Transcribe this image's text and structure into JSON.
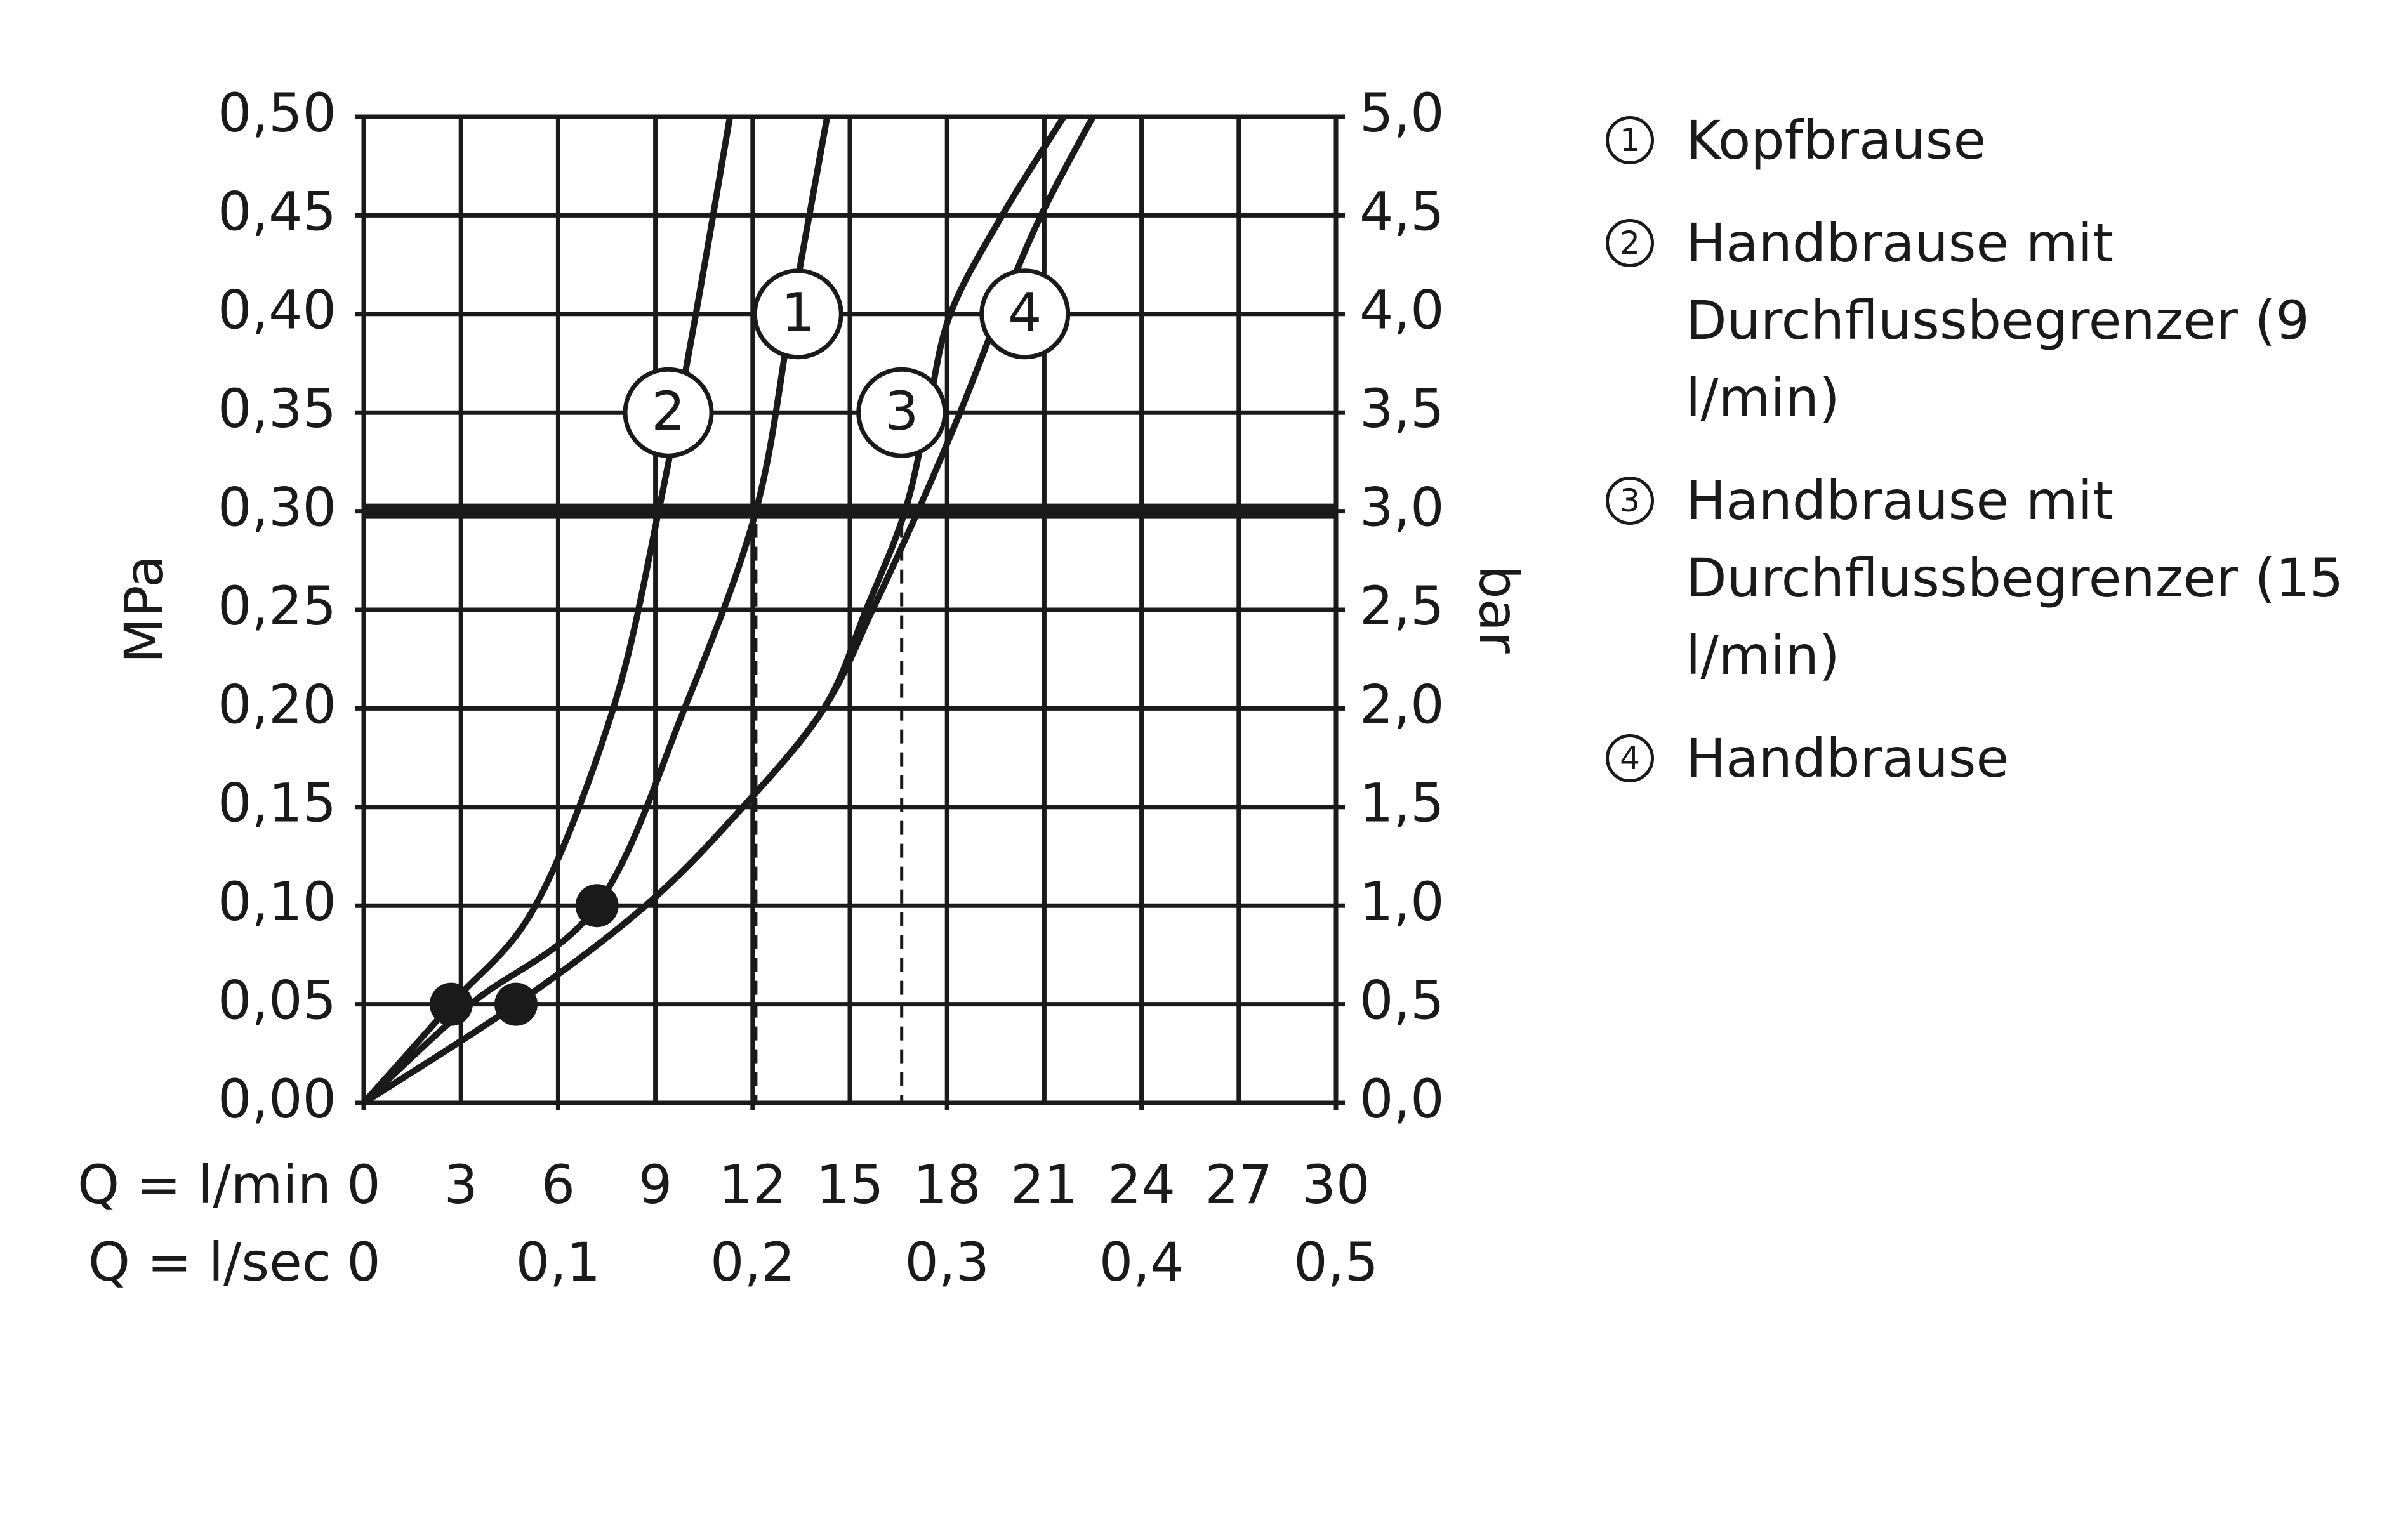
{
  "chart_data": {
    "type": "line",
    "xlabel": "Q = l/min",
    "x2label": "Q = l/sec",
    "ylabel": "MPa",
    "y2label": "bar",
    "xlim": [
      0,
      30
    ],
    "xticks": [
      0,
      3,
      6,
      9,
      12,
      15,
      18,
      21,
      24,
      27,
      30
    ],
    "x2lim": [
      0,
      0.5
    ],
    "x2ticks": [
      0,
      {
        "value": 0.1,
        "label": "0,1"
      },
      {
        "value": 0.2,
        "label": "0,2"
      },
      {
        "value": 0.3,
        "label": "0,3"
      },
      {
        "value": 0.4,
        "label": "0,4"
      },
      {
        "value": 0.5,
        "label": "0,5"
      }
    ],
    "ylim": [
      0,
      0.5
    ],
    "yticks": [
      {
        "value": 0,
        "label": "0,00"
      },
      {
        "value": 0.05,
        "label": "0,05"
      },
      {
        "value": 0.1,
        "label": "0,10"
      },
      {
        "value": 0.15,
        "label": "0,15"
      },
      {
        "value": 0.2,
        "label": "0,20"
      },
      {
        "value": 0.25,
        "label": "0,25"
      },
      {
        "value": 0.3,
        "label": "0,30"
      },
      {
        "value": 0.35,
        "label": "0,35"
      },
      {
        "value": 0.4,
        "label": "0,40"
      },
      {
        "value": 0.45,
        "label": "0,45"
      },
      {
        "value": 0.5,
        "label": "0,50"
      }
    ],
    "y2lim": [
      0,
      5
    ],
    "y2ticks": [
      {
        "value": 0,
        "label": "0,0"
      },
      {
        "value": 0.5,
        "label": "0,5"
      },
      {
        "value": 1,
        "label": "1,0"
      },
      {
        "value": 1.5,
        "label": "1,5"
      },
      {
        "value": 2,
        "label": "2,0"
      },
      {
        "value": 2.5,
        "label": "2,5"
      },
      {
        "value": 3,
        "label": "3,0"
      },
      {
        "value": 3.5,
        "label": "3,5"
      },
      {
        "value": 4,
        "label": "4,0"
      },
      {
        "value": 4.5,
        "label": "4,5"
      },
      {
        "value": 5,
        "label": "5,0"
      }
    ],
    "grid": true,
    "legend": "right",
    "color": "#1a1a1a",
    "reference_y": 0.3,
    "reference_x": [
      12.1,
      16.6
    ],
    "series": [
      {
        "id": "1",
        "name": "Kopfbrause",
        "x": [
          0,
          3.3,
          7.2,
          9.9,
          12.1,
          13.2,
          14.3
        ],
        "values": [
          0,
          0.05,
          0.1,
          0.2,
          0.3,
          0.4,
          0.5
        ]
      },
      {
        "id": "2",
        "name": "Handbrause mit Durchflussbegrenzer (9 l/min)",
        "x": [
          0,
          2.7,
          5.3,
          7.7,
          9.1,
          10.25,
          11.3
        ],
        "values": [
          0,
          0.05,
          0.1,
          0.2,
          0.3,
          0.4,
          0.5
        ]
      },
      {
        "id": "3",
        "name": "Handbrause mit Durchflussbegrenzer (15 l/min)",
        "x": [
          0,
          4.7,
          8.7,
          11.7,
          14.2,
          15.5,
          16.7,
          17.4,
          18.1,
          19.7,
          21.6
        ],
        "values": [
          0,
          0.05,
          0.1,
          0.15,
          0.2,
          0.25,
          0.3,
          0.35,
          0.4,
          0.45,
          0.5
        ]
      },
      {
        "id": "4",
        "name": "Handbrause",
        "x": [
          0,
          4.7,
          8.7,
          11.7,
          14.2,
          15.7,
          17.1,
          18.4,
          19.6,
          20.9,
          22.5
        ],
        "values": [
          0,
          0.05,
          0.1,
          0.15,
          0.2,
          0.25,
          0.3,
          0.35,
          0.4,
          0.45,
          0.5
        ]
      }
    ],
    "dots": [
      {
        "x": 2.7,
        "y": 0.05
      },
      {
        "x": 7.2,
        "y": 0.1
      },
      {
        "x": 4.7,
        "y": 0.05
      }
    ]
  }
}
